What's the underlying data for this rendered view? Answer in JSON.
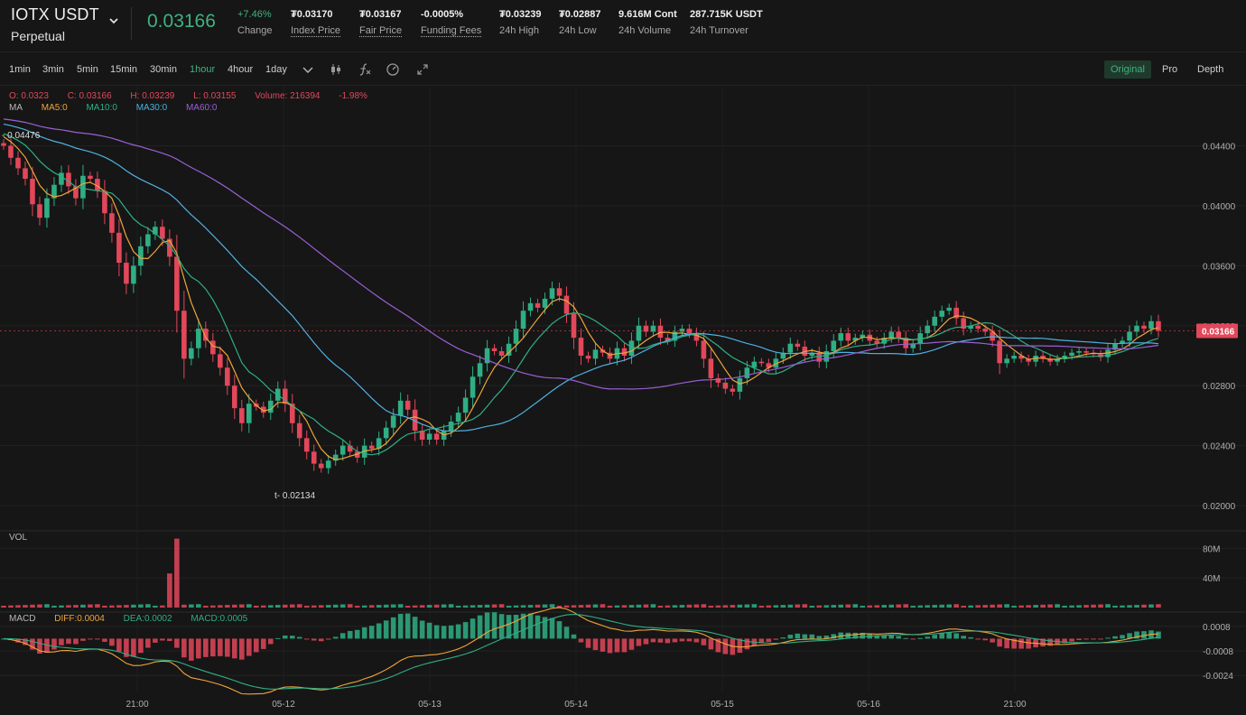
{
  "header": {
    "symbol": "IOTX USDT",
    "contract_type": "Perpetual",
    "last_price": "0.03166",
    "change_value": "+7.46%",
    "change_label": "Change",
    "index_price_value": "₮0.03170",
    "index_price_label": "Index Price",
    "fair_price_value": "₮0.03167",
    "fair_price_label": "Fair Price",
    "funding_fees_value": "-0.0005%",
    "funding_fees_label": "Funding Fees",
    "high_value": "₮0.03239",
    "high_label": "24h High",
    "low_value": "₮0.02887",
    "low_label": "24h Low",
    "volume_value": "9.616M Cont",
    "volume_label": "24h Volume",
    "turnover_value": "287.715K USDT",
    "turnover_label": "24h Turnover"
  },
  "toolbar": {
    "timeframes": [
      "1min",
      "3min",
      "5min",
      "15min",
      "30min",
      "1hour",
      "4hour",
      "1day"
    ],
    "active_timeframe": "1hour",
    "views": [
      "Original",
      "Pro",
      "Depth"
    ],
    "active_view": "Original"
  },
  "ohlc_legend": {
    "open": "O: 0.0323",
    "close": "C: 0.03166",
    "high": "H: 0.03239",
    "low": "L: 0.03155",
    "volume": "Volume: 216394",
    "change": "-1.98%"
  },
  "ma_legend": {
    "label": "MA",
    "ma5": "MA5:0",
    "ma10": "MA10:0",
    "ma30": "MA30:0",
    "ma60": "MA60:0"
  },
  "vol_label": "VOL",
  "macd_legend": {
    "label": "MACD",
    "diff": "DIFF:0.0004",
    "dea": "DEA:0.0002",
    "macd": "MACD:0.0005"
  },
  "price_axis": {
    "ticks": [
      "0.04400",
      "0.04000",
      "0.03600",
      "0.03200",
      "0.02800",
      "0.02400",
      "0.02000"
    ],
    "current_price_tag": "0.03166"
  },
  "volume_axis": {
    "ticks": [
      "80M",
      "40M"
    ]
  },
  "macd_axis": {
    "ticks": [
      "0.0008",
      "-0.0008",
      "-0.0024"
    ]
  },
  "time_axis": {
    "ticks": [
      "21:00",
      "05-12",
      "05-13",
      "05-14",
      "05-15",
      "05-16",
      "21:00"
    ]
  },
  "annotations": {
    "high_marker": "0.04476",
    "low_marker": "0.02134"
  },
  "colors": {
    "up": "#2fae84",
    "down": "#e2475a",
    "ma5": "#f0a53a",
    "ma10": "#2fae84",
    "ma30": "#4fb0e0",
    "ma60": "#9c5fd6",
    "accent": "#3fb27f"
  },
  "chart_data": {
    "type": "candlestick",
    "interval": "1hour",
    "price_range": [
      0.0185,
      0.0468
    ],
    "volume_range": [
      0,
      95000000
    ],
    "macd_range": [
      -0.0028,
      0.0012
    ],
    "close": [
      0.044,
      0.0432,
      0.0425,
      0.0418,
      0.0401,
      0.0392,
      0.0405,
      0.0414,
      0.0422,
      0.0413,
      0.0405,
      0.042,
      0.0418,
      0.041,
      0.0395,
      0.0382,
      0.0362,
      0.0348,
      0.036,
      0.0373,
      0.0381,
      0.0386,
      0.0378,
      0.0366,
      0.033,
      0.0298,
      0.0305,
      0.0318,
      0.031,
      0.0301,
      0.0292,
      0.028,
      0.0265,
      0.0255,
      0.0268,
      0.0266,
      0.0262,
      0.027,
      0.0278,
      0.0268,
      0.0255,
      0.0245,
      0.0236,
      0.0228,
      0.0225,
      0.023,
      0.0234,
      0.024,
      0.0236,
      0.0232,
      0.024,
      0.0238,
      0.0245,
      0.0252,
      0.026,
      0.027,
      0.0264,
      0.025,
      0.0244,
      0.0248,
      0.0244,
      0.025,
      0.0256,
      0.0262,
      0.0272,
      0.0286,
      0.0295,
      0.0305,
      0.0303,
      0.03,
      0.0308,
      0.0318,
      0.033,
      0.0335,
      0.0332,
      0.0338,
      0.0345,
      0.034,
      0.0328,
      0.0312,
      0.03,
      0.0298,
      0.0304,
      0.0302,
      0.0298,
      0.0305,
      0.03,
      0.031,
      0.032,
      0.0316,
      0.032,
      0.0312,
      0.031,
      0.0316,
      0.0318,
      0.0315,
      0.031,
      0.0298,
      0.0285,
      0.0282,
      0.0278,
      0.0276,
      0.0285,
      0.0292,
      0.0296,
      0.0295,
      0.0292,
      0.0298,
      0.0302,
      0.0308,
      0.0306,
      0.03,
      0.0302,
      0.0296,
      0.0303,
      0.031,
      0.0315,
      0.031,
      0.0312,
      0.0314,
      0.031,
      0.0308,
      0.0312,
      0.0316,
      0.0312,
      0.0305,
      0.0308,
      0.0315,
      0.032,
      0.0326,
      0.033,
      0.0332,
      0.0325,
      0.0318,
      0.032,
      0.0318,
      0.0316,
      0.031,
      0.0295,
      0.0298,
      0.03,
      0.0298,
      0.0296,
      0.03,
      0.0298,
      0.0296,
      0.0298,
      0.03,
      0.0302,
      0.0303,
      0.0302,
      0.0301,
      0.0299,
      0.0304,
      0.0308,
      0.031,
      0.0316,
      0.032,
      0.0318,
      0.0323,
      0.03166
    ],
    "volume_note": "Volume bars mostly small; one large spike near 05-11 21:00"
  }
}
